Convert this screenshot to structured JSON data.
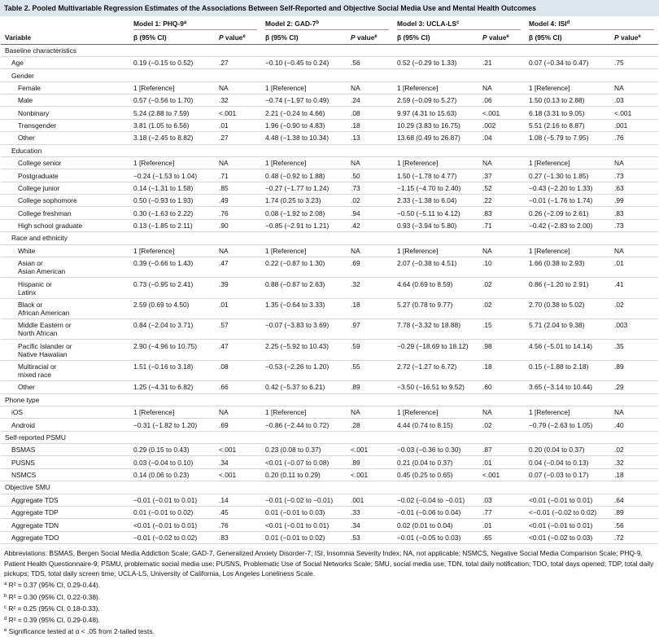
{
  "title": "Table 2. Pooled Multivariable Regression Estimates of the Associations Between Self-Reported and Objective Social Media Use and Mental Health Outcomes",
  "header": {
    "variable": "Variable",
    "models": [
      {
        "label": "Model 1: PHQ-9",
        "sup": "a"
      },
      {
        "label": "Model 2: GAD-7",
        "sup": "b"
      },
      {
        "label": "Model 3: UCLA-LS",
        "sup": "c"
      },
      {
        "label": "Model 4: ISI",
        "sup": "d"
      }
    ],
    "beta": "β (95% CI)",
    "p": {
      "italic": "P",
      "text": "value",
      "sup": "e"
    }
  },
  "sections": [
    {
      "label": "Baseline characteristics",
      "rows": [
        {
          "label": "Age",
          "cells": [
            "0.19 (−0.15 to 0.52)",
            ".27",
            "−0.10 (−0.45 to 0.24)",
            ".56",
            "0.52 (−0.29 to 1.33)",
            ".21",
            "0.07 (−0.34 to 0.47)",
            ".75"
          ]
        },
        {
          "label": "Gender",
          "rows": [
            {
              "label": "Female",
              "cells": [
                "1 [Reference]",
                "NA",
                "1 [Reference]",
                "NA",
                "1 [Reference]",
                "NA",
                "1 [Reference]",
                "NA"
              ]
            },
            {
              "label": "Male",
              "cells": [
                "0.57 (−0.56 to 1.70)",
                ".32",
                "−0.74 (−1.97 to 0.49)",
                ".24",
                "2.59 (−0.09 to 5.27)",
                ".06",
                "1.50 (0.13 to 2.88)",
                ".03"
              ]
            },
            {
              "label": "Nonbinary",
              "cells": [
                "5.24 (2.88 to 7.59)",
                "<.001",
                "2.21 (−0.24 to 4.66)",
                ".08",
                "9.97 (4.31 to 15.63)",
                "<.001",
                "6.18 (3.31 to 9.05)",
                "<.001"
              ]
            },
            {
              "label": "Transgender",
              "cells": [
                "3.81 (1.05 to 6.56)",
                ".01",
                "1.96 (−0.90 to 4.83)",
                ".18",
                "10.29 (3.83 to 16.75)",
                ".002",
                "5.51 (2.16 to 8.87)",
                ".001"
              ]
            },
            {
              "label": "Other",
              "cells": [
                "3.18 (−2.45 to 8.82)",
                ".27",
                "4.48 (−1.38 to 10.34)",
                ".13",
                "13.68 (0.49 to 26.87)",
                ".04",
                "1.08 (−5.79 to 7.95)",
                ".76"
              ]
            }
          ]
        },
        {
          "label": "Education",
          "rows": [
            {
              "label": "College senior",
              "cells": [
                "1 [Reference]",
                "NA",
                "1 [Reference]",
                "NA",
                "1 [Reference]",
                "NA",
                "1 [Reference]",
                "NA"
              ]
            },
            {
              "label": "Postgraduate",
              "cells": [
                "−0.24 (−1.53 to 1.04)",
                ".71",
                "0.48 (−0.92 to 1.88)",
                ".50",
                "1.50 (−1.78 to 4.77)",
                ".37",
                "0.27 (−1.30 to 1.85)",
                ".73"
              ]
            },
            {
              "label": "College junior",
              "cells": [
                "0.14 (−1.31 to 1.58)",
                ".85",
                "−0.27 (−1.77 to 1.24)",
                ".73",
                "−1.15 (−4.70 to 2.40)",
                ".52",
                "−0.43 (−2.20 to 1.33)",
                ".63"
              ]
            },
            {
              "label": "College sophomore",
              "cells": [
                "0.50 (−0.93 to 1.93)",
                ".49",
                "1.74 (0.25 to 3.23)",
                ".02",
                "2.33 (−1.38 to 6.04)",
                ".22",
                "−0.01 (−1.76 to 1.74)",
                ".99"
              ]
            },
            {
              "label": "College freshman",
              "cells": [
                "0.30 (−1.63 to 2.22)",
                ".76",
                "0.08 (−1.92 to 2.08)",
                ".94",
                "−0.50 (−5.11 to 4.12)",
                ".83",
                "0.26 (−2.09 to 2.61)",
                ".83"
              ]
            },
            {
              "label": "High school graduate",
              "cells": [
                "0.13 (−1.85 to 2.11)",
                ".90",
                "−0.85 (−2.91 to 1.21)",
                ".42",
                "0.93 (−3.94 to 5.80)",
                ".71",
                "−0.42 (−2.83 to 2.00)",
                ".73"
              ]
            }
          ]
        },
        {
          "label": "Race and ethnicity",
          "rows": [
            {
              "label": "White",
              "cells": [
                "1 [Reference]",
                "NA",
                "1 [Reference]",
                "NA",
                "1 [Reference]",
                "NA",
                "1 [Reference]",
                "NA"
              ]
            },
            {
              "label": "Asian or\nAsian American",
              "cells": [
                "0.39 (−0.66 to 1.43)",
                ".47",
                "0.22 (−0.87 to 1.30)",
                ".69",
                "2.07 (−0.38 to 4.51)",
                ".10",
                "1.66 (0.38 to 2.93)",
                ".01"
              ]
            },
            {
              "label": "Hispanic or\nLatinx",
              "cells": [
                "0.73 (−0.95 to 2.41)",
                ".39",
                "0.88 (−0.87 to 2.63)",
                ".32",
                "4.64 (0.69 to 8.59)",
                ".02",
                "0.86 (−1.20 to 2.91)",
                ".41"
              ]
            },
            {
              "label": "Black or\nAfrican American",
              "cells": [
                "2.59 (0.69 to 4.50)",
                ".01",
                "1.35 (−0.64 to 3.33)",
                ".18",
                "5.27 (0.78 to 9.77)",
                ".02",
                "2.70 (0.38 to 5.02)",
                ".02"
              ]
            },
            {
              "label": "Middle Eastern or\nNorth African",
              "cells": [
                "0.84 (−2.04 to 3.71)",
                ".57",
                "−0.07 (−3.83 to 3.69)",
                ".97",
                "7.78 (−3.32 to 18.88)",
                ".15",
                "5.71 (2.04 to 9.38)",
                ".003"
              ]
            },
            {
              "label": "Pacific Islander or\nNative Hawaiian",
              "cells": [
                "2.90 (−4.96 to 10.75)",
                ".47",
                "2.25 (−5.92 to 10.43)",
                ".59",
                "−0.29 (−18.69 to 18.12)",
                ".98",
                "4.56 (−5.01 to 14.14)",
                ".35"
              ]
            },
            {
              "label": "Multiracial or\nmixed race",
              "cells": [
                "1.51 (−0.16 to 3.18)",
                ".08",
                "−0.53 (−2.26 to 1.20)",
                ".55",
                "2.72 (−1.27 to 6.72)",
                ".18",
                "0.15 (−1.88 to 2.18)",
                ".89"
              ]
            },
            {
              "label": "Other",
              "cells": [
                "1.25 (−4.31 to 6.82)",
                ".66",
                "0.42 (−5.37 to 6.21)",
                ".89",
                "−3.50 (−16.51 to 9.52)",
                ".60",
                "3.65 (−3.14 to 10.44)",
                ".29"
              ]
            }
          ]
        }
      ]
    },
    {
      "label": "Phone type",
      "rows": [
        {
          "label": "iOS",
          "cells": [
            "1 [Reference]",
            "NA",
            "1 [Reference]",
            "NA",
            "1 [Reference]",
            "NA",
            "1 [Reference]",
            "NA"
          ]
        },
        {
          "label": "Android",
          "cells": [
            "−0.31 (−1.82 to 1.20)",
            ".69",
            "−0.86 (−2.44 to 0.72)",
            ".28",
            "4.44 (0.74 to 8.15)",
            ".02",
            "−0.79 (−2.63 to 1.05)",
            ".40"
          ]
        }
      ]
    },
    {
      "label": "Self-reported PSMU",
      "rows": [
        {
          "label": "BSMAS",
          "cells": [
            "0.29 (0.15 to 0.43)",
            "<.001",
            "0.23 (0.08 to 0.37)",
            "<.001",
            "−0.03 (−0.36 to 0.30)",
            ".87",
            "0.20 (0.04 to 0.37)",
            ".02"
          ]
        },
        {
          "label": "PUSNS",
          "cells": [
            "0.03 (−0.04 to 0.10)",
            ".34",
            "<0.01 (−0.07 to 0.08)",
            ".89",
            "0.21 (0.04 to 0.37)",
            ".01",
            "0.04 (−0.04 to 0.13)",
            ".32"
          ]
        },
        {
          "label": "NSMCS",
          "cells": [
            "0.14 (0.06 to 0.23)",
            "<.001",
            "0.20 (0.11 to 0.29)",
            "<.001",
            "0.45 (0.25 to 0.65)",
            "<.001",
            "0.07 (−0.03 to 0.17)",
            ".18"
          ]
        }
      ]
    },
    {
      "label": "Objective SMU",
      "rows": [
        {
          "label": "Aggregate TDS",
          "cells": [
            "−0.01 (−0.01 to 0.01)",
            ".14",
            "−0.01 (−0.02 to −0.01)",
            ".001",
            "−0.02 (−0.04 to −0.01)",
            ".03",
            "<0.01 (−0.01 to 0.01)",
            ".64"
          ]
        },
        {
          "label": "Aggregate TDP",
          "cells": [
            "0.01 (−0.01 to 0.02)",
            ".45",
            "0.01 (−0.01 to 0.03)",
            ".33",
            "−0.01 (−0.06 to 0.04)",
            ".77",
            "<−0.01 (−0.02 to 0.02)",
            ".89"
          ]
        },
        {
          "label": "Aggregate TDN",
          "cells": [
            "<0.01 (−0.01 to 0.01)",
            ".76",
            "<0.01 (−0.01 to 0.01)",
            ".34",
            "0.02 (0.01 to 0.04)",
            ".01",
            "<0.01 (−0.01 to 0.01)",
            ".56"
          ]
        },
        {
          "label": "Aggregate TDO",
          "cells": [
            "−0.01 (−0.02 to 0.02)",
            ".83",
            "0.01 (−0.01 to 0.02)",
            ".53",
            "−0.01 (−0.05 to 0.03)",
            ".65",
            "<0.01 (−0.02 to 0.03)",
            ".72"
          ]
        }
      ]
    }
  ],
  "abbreviations": "Abbreviations: BSMAS, Bergen Social Media Addiction Scale; GAD-7, Generalized Anxiety Disorder-7; ISI, Insomnia Severity Index; NA, not applicable; NSMCS, Negative Social Media Comparison Scale; PHQ-9, Patient Health Questionnaire-9; PSMU, problematic social media use; PUSNS, Problematic Use of Social Networks Scale; SMU, social media use; TDN, total daily notification; TDO, total days opened; TDP, total daily pickups; TDS, total daily screen time; UCLA-LS, University of California, Los Angeles Loneliness Scale.",
  "footnotes": [
    {
      "mark": "a",
      "text": "R² = 0.37 (95% CI, 0.29-0.44)."
    },
    {
      "mark": "b",
      "text": "R² = 0.30 (95% CI, 0.22-0.38)."
    },
    {
      "mark": "c",
      "text": "R² = 0.25 (95% CI, 0.18-0.33)."
    },
    {
      "mark": "d",
      "text": "R² = 0.39 (95% CI, 0.29-0.48)."
    },
    {
      "mark": "e",
      "text": "Significance tested at α < .05 from 2-tailed tests."
    }
  ]
}
